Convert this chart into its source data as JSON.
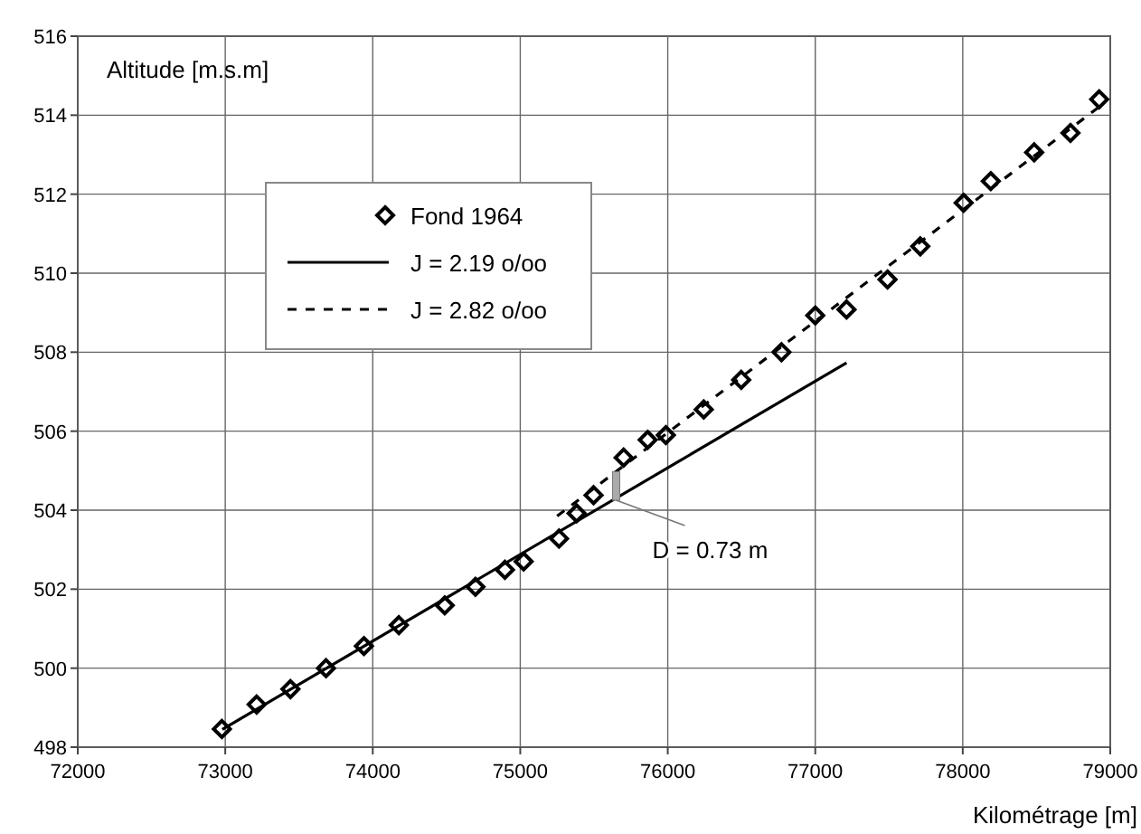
{
  "chart_data": {
    "type": "scatter",
    "xlabel": "Kilométrage [m]",
    "ylabel": "Altitude [m.s.m]",
    "xlim": [
      72000,
      79000
    ],
    "xticks": [
      72000,
      73000,
      74000,
      75000,
      76000,
      77000,
      78000,
      79000
    ],
    "ylim": [
      498,
      516
    ],
    "yticks": [
      498,
      500,
      502,
      504,
      506,
      508,
      510,
      512,
      514,
      516
    ],
    "grid": true,
    "legend": "top left",
    "series": [
      {
        "name": "Fond 1964",
        "marker": "diamond",
        "color": "#000000",
        "x": [
          72977,
          73213,
          73442,
          73683,
          73940,
          74177,
          74488,
          74696,
          74896,
          75023,
          75263,
          75382,
          75497,
          75701,
          75864,
          75987,
          76244,
          76498,
          76771,
          77000,
          77212,
          77490,
          77712,
          78006,
          78190,
          78484,
          78730,
          78925
        ],
        "values": [
          498.46,
          499.08,
          499.47,
          500.0,
          500.56,
          501.09,
          501.59,
          502.06,
          502.49,
          502.7,
          503.28,
          503.92,
          504.38,
          505.33,
          505.78,
          505.9,
          506.55,
          507.3,
          508.0,
          508.93,
          509.08,
          509.84,
          510.68,
          511.78,
          512.33,
          513.06,
          513.55,
          514.4
        ]
      },
      {
        "name": "J = 2.19 o/oo",
        "type": "line",
        "line_style": "solid",
        "marker": "none",
        "color": "#000000",
        "x": [
          72980,
          77212
        ],
        "values": [
          498.45,
          507.73
        ]
      },
      {
        "name": "J = 2.82 o/oo",
        "type": "line",
        "line_style": "dashed",
        "marker": "none",
        "color": "#000000",
        "x": [
          75250,
          78950
        ],
        "values": [
          503.85,
          514.28
        ]
      }
    ],
    "annotations": [
      {
        "text": "D = 0.73 m",
        "x": 75650,
        "y": 504.25
      }
    ]
  }
}
